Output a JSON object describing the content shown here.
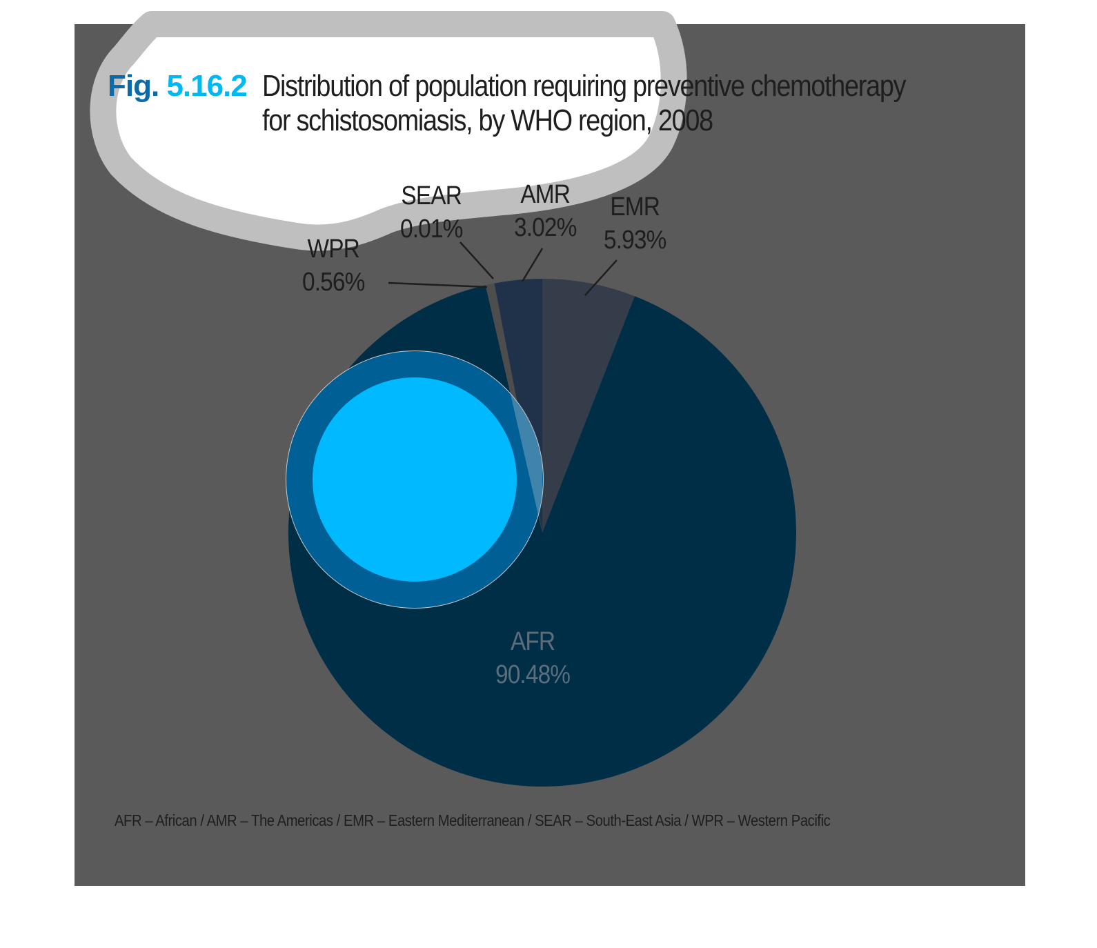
{
  "figure": {
    "fig_word": "Fig.",
    "fig_id": "5.16.2",
    "title_line_1": "Distribution of population requiring preventive chemotherapy",
    "title_line_2": "for schistosomiasis, by WHO region, 2008"
  },
  "chart_data": {
    "type": "pie",
    "title": "Distribution of population requiring preventive chemotherapy for schistosomiasis, by WHO region, 2008",
    "slices": [
      {
        "label": "AFR",
        "value": 90.48,
        "value_label": "90.48%",
        "color": "#002e47"
      },
      {
        "label": "WPR",
        "value": 0.56,
        "value_label": "0.56%",
        "color": "#4d4d4d"
      },
      {
        "label": "SEAR",
        "value": 0.01,
        "value_label": "0.01%",
        "color": "#2a3a4a"
      },
      {
        "label": "AMR",
        "value": 3.02,
        "value_label": "3.02%",
        "color": "#1f3249"
      },
      {
        "label": "EMR",
        "value": 5.93,
        "value_label": "5.93%",
        "color": "#343d49"
      }
    ]
  },
  "footnote": "AFR – African / AMR – The Americas / EMR – Eastern Mediterranean / SEAR – South-East Asia / WPR – Western Pacific",
  "colors": {
    "panel_bg": "#5a5a5a",
    "bubble_fill": "#ffffff",
    "bubble_outline": "#bfbfbf",
    "ring_outer": "#005f94",
    "ring_inner": "#00b9ff",
    "afr_label": "#5c6e7c"
  }
}
